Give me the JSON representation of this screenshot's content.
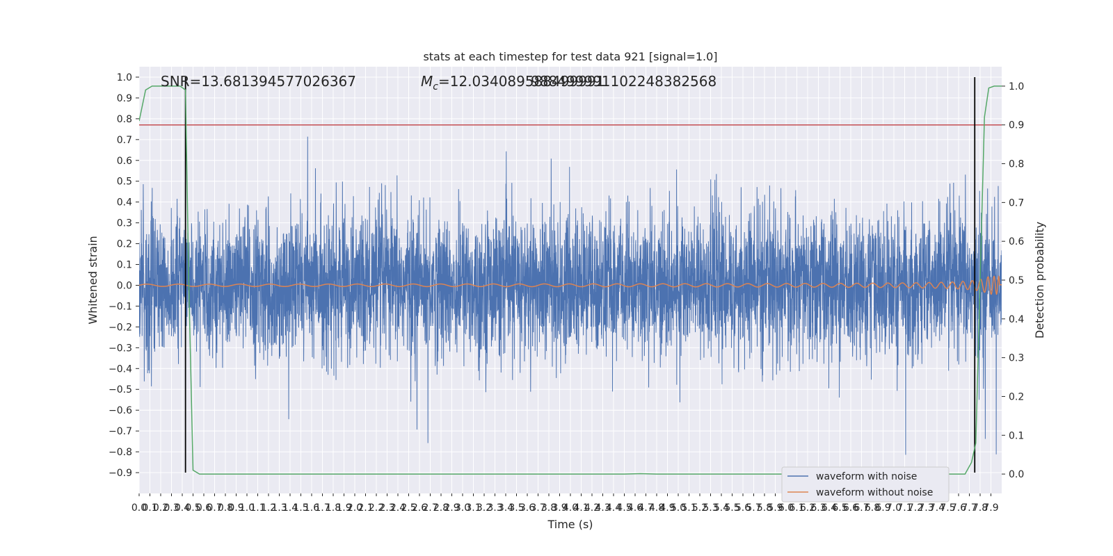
{
  "chart_data": {
    "type": "line",
    "title": "stats at each timestep for test data 921 [signal=1.0]",
    "xlabel": "Time (s)",
    "ylabel": "Whitened strain",
    "y2label": "Detection probability",
    "xlim": [
      0.0,
      8.0
    ],
    "ylim": [
      -1.0,
      1.05
    ],
    "y2lim": [
      -0.05,
      1.05
    ],
    "x_ticks": [
      "0.0",
      "0.1",
      "0.2",
      "0.3",
      "0.4",
      "0.5",
      "0.6",
      "0.7",
      "0.8",
      "0.9",
      "1.0",
      "1.1",
      "1.2",
      "1.3",
      "1.4",
      "1.5",
      "1.6",
      "1.7",
      "1.8",
      "1.9",
      "2.0",
      "2.1",
      "2.2",
      "2.3",
      "2.4",
      "2.5",
      "2.6",
      "2.7",
      "2.8",
      "2.9",
      "3.0",
      "3.1",
      "3.2",
      "3.3",
      "3.4",
      "3.5",
      "3.6",
      "3.7",
      "3.8",
      "3.9",
      "4.0",
      "4.1",
      "4.2",
      "4.3",
      "4.4",
      "4.5",
      "4.6",
      "4.7",
      "4.8",
      "4.9",
      "5.0",
      "5.1",
      "5.2",
      "5.3",
      "5.4",
      "5.5",
      "5.6",
      "5.7",
      "5.8",
      "5.9",
      "6.0",
      "6.1",
      "6.2",
      "6.3",
      "6.4",
      "6.5",
      "6.6",
      "6.7",
      "6.8",
      "6.9",
      "7.0",
      "7.1",
      "7.2",
      "7.3",
      "7.4",
      "7.5",
      "7.6",
      "7.7",
      "7.8",
      "7.9"
    ],
    "y_ticks": [
      "1.0",
      "0.9",
      "0.8",
      "0.7",
      "0.6",
      "0.5",
      "0.4",
      "0.3",
      "0.2",
      "0.1",
      "0.0",
      "−0.1",
      "−0.2",
      "−0.3",
      "−0.4",
      "−0.5",
      "−0.6",
      "−0.7",
      "−0.8",
      "−0.9"
    ],
    "y2_ticks": [
      "1.0",
      "0.9",
      "0.8",
      "0.7",
      "0.6",
      "0.5",
      "0.4",
      "0.3",
      "0.2",
      "0.1",
      "0.0"
    ],
    "annotations": {
      "snr": "SNR=13.681394577026367",
      "mc_prefix": "M",
      "mc_sub": "c",
      "mc_value": "=12.034089588499991",
      "mc_overlap": "988499991102248382568"
    },
    "threshold_line": {
      "y2": 0.9,
      "color": "#c44e52"
    },
    "vertical_lines": [
      0.43,
      7.75
    ],
    "legend": {
      "position": "lower-right",
      "entries": [
        "waveform with noise",
        "waveform without noise"
      ]
    },
    "series": [
      {
        "name": "waveform with noise",
        "color": "#4c72b0"
      },
      {
        "name": "waveform without noise",
        "color": "#dd8452"
      },
      {
        "color": "#55a868",
        "x": [
          0.0,
          0.06,
          0.12,
          0.2,
          0.3,
          0.38,
          0.43,
          0.46,
          0.5,
          0.56,
          0.7,
          1.5,
          3.0,
          4.5,
          4.65,
          4.8,
          6.0,
          7.0,
          7.6,
          7.66,
          7.72,
          7.76,
          7.8,
          7.84,
          7.88,
          7.93,
          8.0
        ],
        "y": [
          0.91,
          0.99,
          1.0,
          1.0,
          1.0,
          1.0,
          0.99,
          0.5,
          0.01,
          0.0,
          0.0,
          0.0,
          0.0,
          0.0,
          0.001,
          0.0,
          0.0,
          0.0,
          0.0,
          0.0,
          0.03,
          0.08,
          0.5,
          0.92,
          0.995,
          1.0,
          1.0
        ]
      }
    ],
    "grid": true
  }
}
